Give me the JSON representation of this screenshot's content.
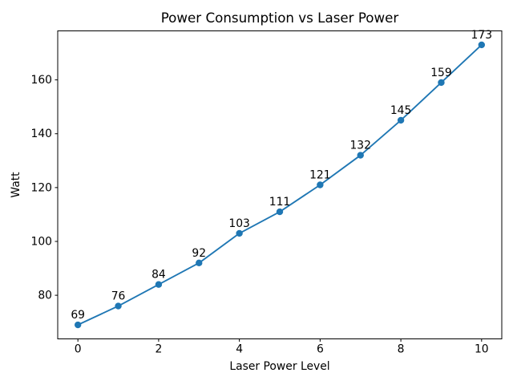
{
  "figure": {
    "background": "#ffffff"
  },
  "chart_data": {
    "type": "line",
    "title": "Power Consumption vs Laser Power",
    "xlabel": "Laser Power Level",
    "ylabel": "Watt",
    "x": [
      0,
      1,
      2,
      3,
      4,
      5,
      6,
      7,
      8,
      9,
      10
    ],
    "series": [
      {
        "name": "Power Consumption",
        "values": [
          69,
          76,
          84,
          92,
          103,
          111,
          121,
          132,
          145,
          159,
          173
        ],
        "point_labels": [
          "69",
          "76",
          "84",
          "92",
          "103",
          "111",
          "121",
          "132",
          "145",
          "159",
          "173"
        ],
        "color": "#1f77b4",
        "marker": "circle"
      }
    ],
    "xticks": [
      0,
      2,
      4,
      6,
      8,
      10
    ],
    "xtick_labels": [
      "0",
      "2",
      "4",
      "6",
      "8",
      "10"
    ],
    "yticks": [
      80,
      100,
      120,
      140,
      160
    ],
    "ytick_labels": [
      "80",
      "100",
      "120",
      "140",
      "160"
    ],
    "xlim": [
      -0.5,
      10.5
    ],
    "ylim": [
      63.8,
      178.2
    ],
    "grid": false,
    "legend": null,
    "text_color": "#000000",
    "spine_color": "#000000"
  }
}
